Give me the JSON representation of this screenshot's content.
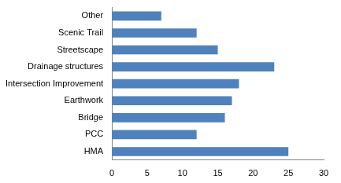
{
  "chart_data": {
    "type": "bar",
    "orientation": "horizontal",
    "categories": [
      "Other",
      "Scenic Trail",
      "Streetscape",
      "Drainage structures",
      "Intersection Improvement",
      "Earthwork",
      "Bridge",
      "PCC",
      "HMA"
    ],
    "values": [
      7,
      12,
      15,
      23,
      18,
      17,
      16,
      12,
      25
    ],
    "color": "#4f81bd",
    "xlim": [
      0,
      30
    ],
    "xticks": [
      0,
      5,
      10,
      15,
      20,
      25,
      30
    ],
    "grid": false
  }
}
